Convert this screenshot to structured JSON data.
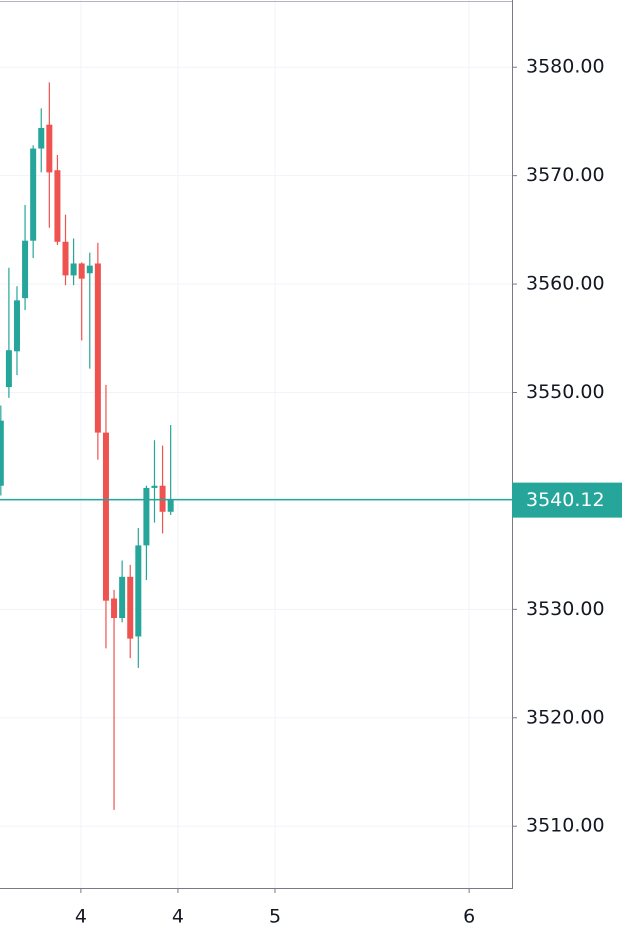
{
  "chart_data": {
    "type": "candlestick",
    "x": [
      0,
      1,
      2,
      3,
      4,
      5,
      6,
      7,
      8,
      9,
      10,
      11,
      12,
      13,
      14,
      15,
      16,
      17,
      18,
      19,
      20,
      21
    ],
    "open": [
      3541.4,
      3550.5,
      3553.8,
      3558.7,
      3564.0,
      3572.5,
      3574.7,
      3570.5,
      3563.9,
      3560.8,
      3561.9,
      3561.0,
      3561.9,
      3546.3,
      3531.0,
      3529.2,
      3533.0,
      3527.5,
      3535.9,
      3541.2,
      3541.4,
      3539.0
    ],
    "high": [
      3548.8,
      3561.5,
      3559.8,
      3567.3,
      3572.8,
      3576.2,
      3578.6,
      3571.9,
      3566.4,
      3564.2,
      3562.0,
      3562.9,
      3563.8,
      3550.7,
      3531.8,
      3534.5,
      3534.1,
      3537.5,
      3541.4,
      3545.6,
      3545.1,
      3547.0
    ],
    "low": [
      3540.5,
      3549.5,
      3551.6,
      3557.6,
      3562.4,
      3570.3,
      3565.2,
      3563.6,
      3559.9,
      3559.9,
      3554.8,
      3552.2,
      3543.8,
      3526.4,
      3511.5,
      3528.8,
      3525.5,
      3524.6,
      3532.7,
      3538.0,
      3537.0,
      3538.7
    ],
    "close": [
      3547.4,
      3553.9,
      3558.5,
      3564.0,
      3572.5,
      3574.4,
      3570.3,
      3563.9,
      3560.8,
      3561.9,
      3560.5,
      3561.7,
      3546.3,
      3530.8,
      3529.2,
      3533.0,
      3527.3,
      3535.9,
      3541.2,
      3541.4,
      3539.0,
      3540.1
    ],
    "up_color": "#26a69a",
    "down_color": "#ef5350",
    "last_price": 3540.12,
    "last_price_color": "#26a69a",
    "xlim": [
      -0.1,
      63.2
    ],
    "xticks": [
      {
        "value": 9.9,
        "label": "4"
      },
      {
        "value": 21.9,
        "label": "4"
      },
      {
        "value": 33.9,
        "label": "5"
      },
      {
        "value": 57.9,
        "label": "6"
      }
    ],
    "ylim": [
      3504.3,
      3586.2
    ],
    "yticks": [
      {
        "value": 3510,
        "label": "3510.00"
      },
      {
        "value": 3520,
        "label": "3520.00"
      },
      {
        "value": 3530,
        "label": "3530.00"
      },
      {
        "value": 3540,
        "label": "3540.00"
      },
      {
        "value": 3550,
        "label": "3550.00"
      },
      {
        "value": 3560,
        "label": "3560.00"
      },
      {
        "value": 3570,
        "label": "3570.00"
      },
      {
        "value": 3580,
        "label": "3580.00"
      }
    ],
    "grid": true
  }
}
